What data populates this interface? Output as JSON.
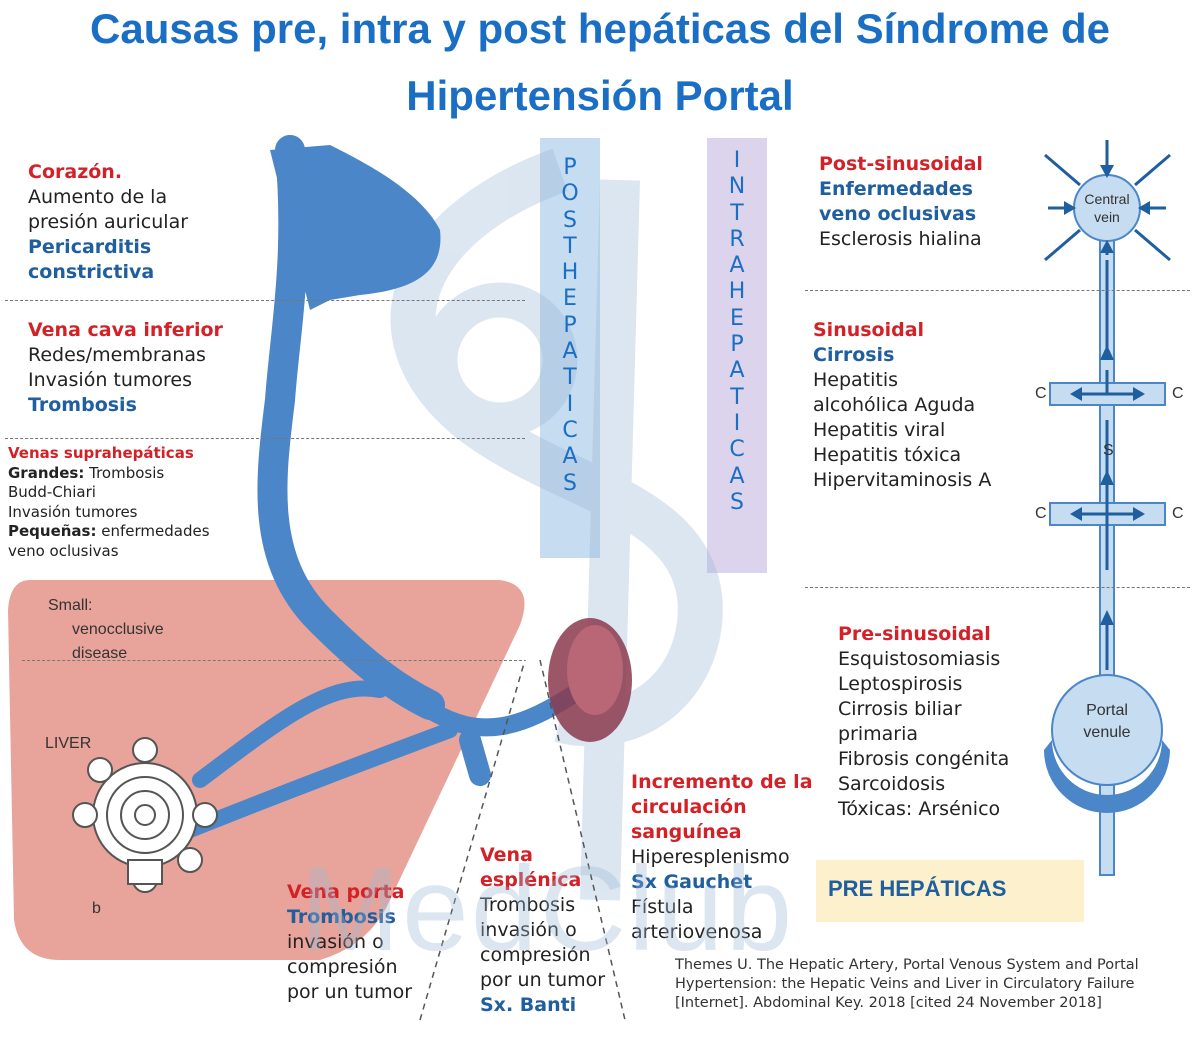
{
  "title": {
    "line1": "Causas pre, intra y post hepáticas del Síndrome de",
    "line2": "Hipertensión Portal"
  },
  "vertical_labels": {
    "post": [
      "P",
      "O",
      "S",
      "T",
      "H",
      "E",
      "P",
      "A",
      "T",
      "I",
      "C",
      "A",
      "S"
    ],
    "intra": [
      "I",
      "N",
      "T",
      "R",
      "A",
      "H",
      "E",
      "P",
      "A",
      "T",
      "I",
      "C",
      "A",
      "S"
    ]
  },
  "left": {
    "corazon": {
      "heading": "Corazón.",
      "lines": [
        "Aumento de la",
        "presión auricular"
      ],
      "blue": [
        "Pericarditis",
        "constrictiva"
      ]
    },
    "cava": {
      "heading": "Vena cava inferior",
      "lines": [
        "Redes/membranas",
        "Invasión tumores"
      ],
      "blue": "Trombosis"
    },
    "supra": {
      "heading": "Venas suprahepáticas",
      "grandes_label": "Grandes:",
      "grandes_text": "Trombosis",
      "lines": [
        "Budd-Chiari",
        "Invasión tumores"
      ],
      "pequenas_label": "Pequeñas:",
      "pequenas_text": "enfermedades",
      "last": "veno oclusivas"
    }
  },
  "right": {
    "post_sinusoidal": {
      "heading": "Post-sinusoidal",
      "blue": [
        "Enfermedades",
        "veno oclusivas"
      ],
      "lines": [
        "Esclerosis hialina"
      ]
    },
    "sinusoidal": {
      "heading": "Sinusoidal",
      "blue": "Cirrosis",
      "lines": [
        "Hepatitis",
        "alcohólica Aguda",
        "Hepatitis viral",
        "Hepatitis tóxica",
        "Hipervitaminosis A"
      ]
    },
    "pre_sinusoidal": {
      "heading": "Pre-sinusoidal",
      "lines": [
        "Esquistosomiasis",
        "Leptospirosis",
        "Cirrosis biliar",
        "primaria",
        "Fibrosis congénita",
        "Sarcoidosis",
        "Tóxicas: Arsénico"
      ]
    }
  },
  "bottom": {
    "vena_porta": {
      "heading": "Vena porta",
      "blue": "Trombosis",
      "lines": [
        "invasión o",
        "compresión",
        "por un tumor"
      ]
    },
    "vena_esplenica": {
      "heading": [
        "Vena",
        "esplénica"
      ],
      "lines": [
        "Trombosis",
        "invasión o",
        "compresión",
        "por un tumor"
      ],
      "blue": "Sx. Banti"
    },
    "incremento": {
      "heading": [
        "Incremento de la",
        "circulación",
        "sanguínea"
      ],
      "lines": [
        "Hiperesplenismo"
      ],
      "blue": "Sx Gauchet",
      "lines2": [
        "Fístula",
        "arteriovenosa"
      ]
    },
    "pre_hepaticas": "PRE HEPÁTICAS"
  },
  "figure_labels": {
    "small": [
      "Small:",
      "venocclusive",
      "disease"
    ],
    "liver": "LIVER",
    "b": "b",
    "central_vein": [
      "Central",
      "vein"
    ],
    "portal_venule": [
      "Portal",
      "venule"
    ],
    "c": "C",
    "s": "S"
  },
  "watermark": "MedClub",
  "citation": "Themes U. The Hepatic Artery, Portal Venous System and Portal Hypertension: the Hepatic Veins and Liver in Circulatory Failure [Internet]. Abdominal Key. 2018 [cited 24 November 2018]",
  "colors": {
    "title": "#1a6fc4",
    "red": "#d42027",
    "blue": "#1f5e9f",
    "vessel": "#4a86c8",
    "liver": "#e8a49a",
    "post_band": "#c5dcf1",
    "intra_band": "#dcd3ec",
    "pre_box": "#fdf0cc"
  }
}
